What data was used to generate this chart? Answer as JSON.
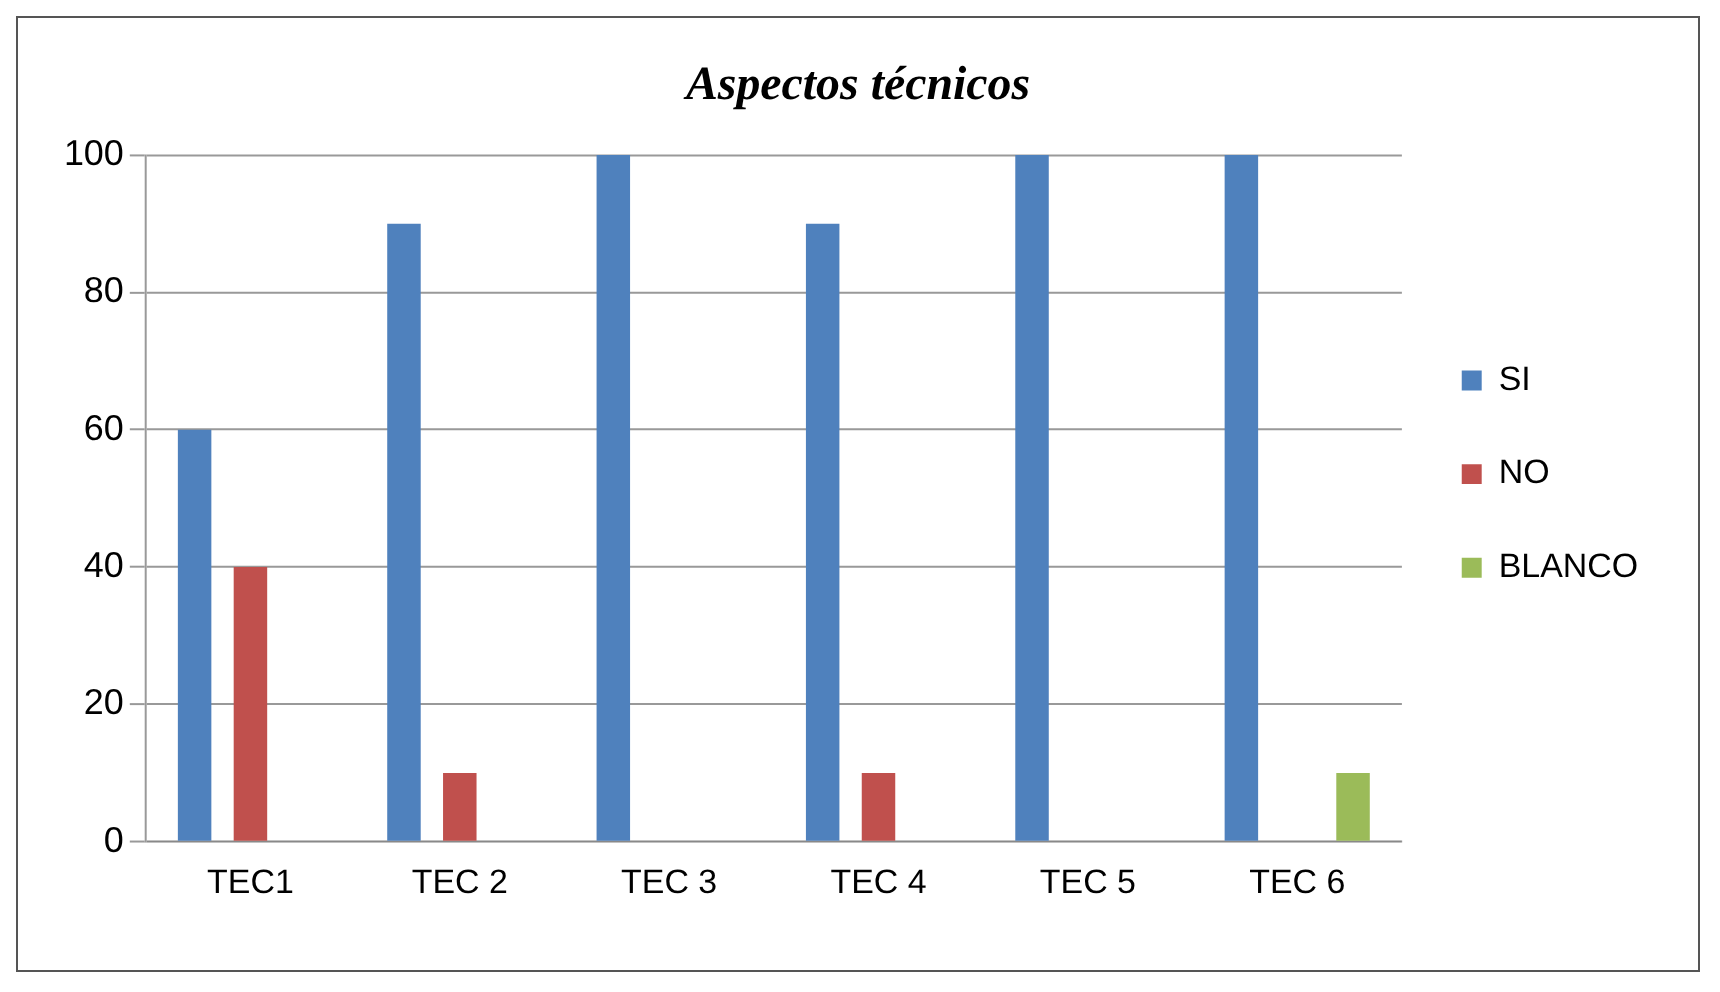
{
  "chart_data": {
    "type": "bar",
    "title": "Aspectos técnicos",
    "categories": [
      "TEC1",
      "TEC 2",
      "TEC 3",
      "TEC 4",
      "TEC 5",
      "TEC 6"
    ],
    "series": [
      {
        "name": "SI",
        "color": "#4f81bd",
        "values": [
          60,
          90,
          100,
          90,
          100,
          100
        ]
      },
      {
        "name": "NO",
        "color": "#c0504d",
        "values": [
          40,
          10,
          0,
          10,
          0,
          0
        ]
      },
      {
        "name": "BLANCO",
        "color": "#9bbb59",
        "values": [
          0,
          0,
          0,
          0,
          0,
          10
        ]
      }
    ],
    "ylim": [
      0,
      100
    ],
    "yticks": [
      0,
      20,
      40,
      60,
      80,
      100
    ],
    "grid": "y",
    "legend": "right"
  }
}
